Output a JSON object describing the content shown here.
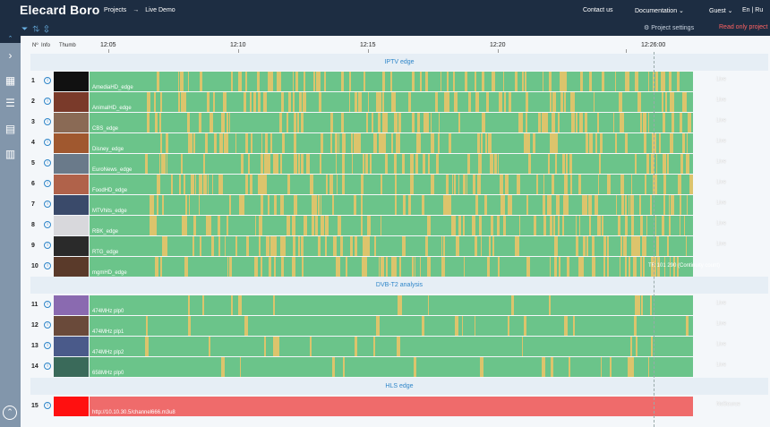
{
  "header": {
    "brand": "Elecard Boro",
    "breadcrumb": [
      "Projects",
      "→",
      "Live Demo"
    ],
    "contact": "Contact us",
    "documentation": "Documentation ⌄",
    "guest": "Guest ⌄",
    "lang": "En | Ru",
    "project_settings": "⚙ Project settings",
    "readonly": "Read only project"
  },
  "columns": {
    "num": "Nº",
    "info": "Info",
    "thumb": "Thumb"
  },
  "timeline": [
    "12:05",
    "12:10",
    "12:15",
    "12:20",
    "12:26:00"
  ],
  "groups": [
    {
      "title": "IPTV edge"
    },
    {
      "title": "DVB-T2 analysis"
    },
    {
      "title": "HLS edge"
    }
  ],
  "rows": [
    {
      "num": "1",
      "name": "AmediaHD_edge",
      "status": "Live",
      "color": "#111111"
    },
    {
      "num": "2",
      "name": "AnimalHD_edge",
      "status": "Live",
      "color": "#7a3a2a"
    },
    {
      "num": "3",
      "name": "CBS_edge",
      "status": "Live",
      "color": "#8a6a55"
    },
    {
      "num": "4",
      "name": "Disney_edge",
      "status": "Live",
      "color": "#a0582f"
    },
    {
      "num": "5",
      "name": "EuroNews_edge",
      "status": "Live",
      "color": "#6a7a8a"
    },
    {
      "num": "6",
      "name": "FoodHD_edge",
      "status": "Live",
      "color": "#b0624a"
    },
    {
      "num": "7",
      "name": "MTVhits_edge",
      "status": "Live",
      "color": "#3a4a6a"
    },
    {
      "num": "8",
      "name": "RBK_edge",
      "status": "Live",
      "color": "#d8d8dc"
    },
    {
      "num": "9",
      "name": "RTG_edge",
      "status": "Live",
      "color": "#2a2a2a"
    },
    {
      "num": "10",
      "name": "mgmHD_edge",
      "status": "",
      "color": "#5a3a2a",
      "error": "TR 101 290 (Continuity count)"
    },
    {
      "num": "11",
      "name": "474MHz plp0",
      "status": "Live",
      "color": "#8a6ab0"
    },
    {
      "num": "12",
      "name": "474MHz plp1",
      "status": "Live",
      "color": "#6a4a3a"
    },
    {
      "num": "13",
      "name": "474MHz plp2",
      "status": "Live",
      "color": "#4a5a8a"
    },
    {
      "num": "14",
      "name": "658MHz plp0",
      "status": "Live",
      "color": "#3a6a5a"
    },
    {
      "num": "15",
      "name": "http://10.10.30.5/channel666.m3u8",
      "status": "NoSource",
      "color": "#ff1010"
    }
  ]
}
